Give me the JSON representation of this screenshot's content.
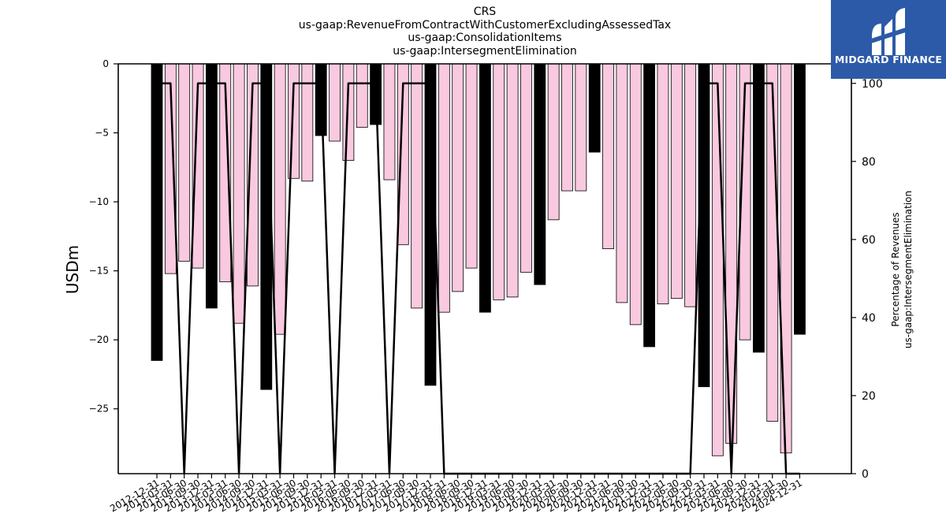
{
  "chart_data": {
    "type": "bar",
    "title_lines": [
      "CRS",
      "us-gaap:RevenueFromContractWithCustomerExcludingAssessedTax",
      "us-gaap:ConsolidationItems",
      "us-gaap:IntersegmentElimination"
    ],
    "ylabel": "USDm",
    "y2label_lines": [
      "Percentage of Revenues",
      "us-gaap:IntersegmentElimination"
    ],
    "ylim": [
      -29.7,
      0
    ],
    "y2lim": [
      0,
      105
    ],
    "yticks": [
      0,
      -5,
      -10,
      -15,
      -20,
      -25
    ],
    "y2ticks": [
      0,
      20,
      40,
      60,
      80,
      100
    ],
    "bar_colors": {
      "annual": "#000000",
      "quarterly": "#f9c9e0"
    },
    "line_color": "#000000",
    "categories": [
      "2012-12-31",
      "2013-03-31",
      "2013-06-30",
      "2013-09-30",
      "2013-12-31",
      "2014-03-31",
      "2014-06-30",
      "2014-09-30",
      "2014-12-31",
      "2015-03-31",
      "2015-06-30",
      "2015-09-30",
      "2015-12-31",
      "2016-03-31",
      "2016-06-30",
      "2016-09-30",
      "2016-12-31",
      "2017-03-31",
      "2017-06-30",
      "2017-09-30",
      "2017-12-31",
      "2018-03-31",
      "2018-06-30",
      "2018-09-30",
      "2018-12-31",
      "2019-03-31",
      "2019-06-30",
      "2019-09-30",
      "2019-12-31",
      "2020-03-31",
      "2020-06-30",
      "2020-09-30",
      "2020-12-31",
      "2021-03-31",
      "2021-06-30",
      "2021-09-30",
      "2021-12-31",
      "2022-03-31",
      "2022-06-30",
      "2022-09-30",
      "2022-12-31",
      "2023-03-31",
      "2023-06-30",
      "2023-09-30",
      "2023-12-31",
      "2024-03-31",
      "2024-06-30",
      "2024-12-31"
    ],
    "series": [
      {
        "kind": "bar",
        "values": [
          -21.5,
          -15.2,
          -14.3,
          -14.8,
          -17.7,
          -15.8,
          -18.8,
          -16.1,
          -23.6,
          -19.6,
          -8.3,
          -8.5,
          -5.2,
          -5.6,
          -7.0,
          -4.6,
          -4.4,
          -8.4,
          -13.1,
          -17.7,
          -23.3,
          -18.0,
          -16.5,
          -14.8,
          -18.0,
          -17.1,
          -16.9,
          -15.1,
          -16.0,
          -11.3,
          -9.2,
          -9.2,
          -6.4,
          -13.4,
          -17.3,
          -18.9,
          -20.5,
          -17.4,
          -17.0,
          -17.6,
          -23.4,
          -28.4,
          -27.5,
          -20.0,
          -20.9,
          -25.9,
          -28.2,
          -19.6
        ],
        "annual": [
          true,
          false,
          false,
          false,
          true,
          false,
          false,
          false,
          true,
          false,
          false,
          false,
          true,
          false,
          false,
          false,
          true,
          false,
          false,
          false,
          true,
          false,
          false,
          false,
          true,
          false,
          false,
          false,
          true,
          false,
          false,
          false,
          true,
          false,
          false,
          false,
          true,
          false,
          false,
          false,
          true,
          false,
          false,
          false,
          true,
          false,
          false,
          true
        ]
      },
      {
        "kind": "line",
        "axis": "right",
        "values": [
          100,
          100,
          0,
          100,
          100,
          100,
          0,
          100,
          100,
          0,
          100,
          100,
          100,
          0,
          100,
          100,
          100,
          0,
          100,
          100,
          100,
          0,
          0,
          0,
          0,
          0,
          0,
          0,
          0,
          0,
          0,
          0,
          0,
          0,
          0,
          0,
          0,
          0,
          0,
          0,
          100,
          100,
          0,
          100,
          100,
          100,
          0,
          0
        ]
      }
    ]
  },
  "logo": {
    "text": "MIDGARD FINANCE"
  }
}
